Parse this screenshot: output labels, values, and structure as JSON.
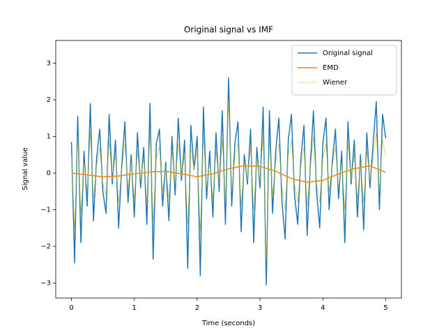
{
  "chart_data": {
    "type": "line",
    "title": "Original signal vs IMF",
    "xlabel": "Time (seconds)",
    "ylabel": "Signal value",
    "xlim": [
      -0.25,
      5.25
    ],
    "ylim": [
      -3.41,
      3.62
    ],
    "xticks": [
      0,
      1,
      2,
      3,
      4,
      5
    ],
    "yticks": [
      {
        "value": -3,
        "label": "−3"
      },
      {
        "value": -2,
        "label": "−2"
      },
      {
        "value": -1,
        "label": "−1"
      },
      0,
      1,
      2,
      3
    ],
    "legend": "upper right",
    "x": [
      0,
      0.05,
      0.1,
      0.15,
      0.2,
      0.25,
      0.3,
      0.35,
      0.4,
      0.45,
      0.5,
      0.55,
      0.6,
      0.65,
      0.7,
      0.75,
      0.8,
      0.85,
      0.9,
      0.95,
      1,
      1.05,
      1.1,
      1.15,
      1.2,
      1.25,
      1.3,
      1.35,
      1.4,
      1.45,
      1.5,
      1.55,
      1.6,
      1.65,
      1.7,
      1.75,
      1.8,
      1.85,
      1.9,
      1.95,
      2,
      2.05,
      2.1,
      2.15,
      2.2,
      2.25,
      2.3,
      2.35,
      2.4,
      2.45,
      2.5,
      2.55,
      2.6,
      2.65,
      2.7,
      2.75,
      2.8,
      2.85,
      2.9,
      2.95,
      3,
      3.05,
      3.1,
      3.15,
      3.2,
      3.25,
      3.3,
      3.35,
      3.4,
      3.45,
      3.5,
      3.55,
      3.6,
      3.65,
      3.7,
      3.75,
      3.8,
      3.85,
      3.9,
      3.95,
      4,
      4.05,
      4.1,
      4.15,
      4.2,
      4.25,
      4.3,
      4.35,
      4.4,
      4.45,
      4.5,
      4.55,
      4.6,
      4.65,
      4.7,
      4.75,
      4.8,
      4.85,
      4.9,
      4.95,
      5
    ],
    "series": [
      {
        "name": "Original signal",
        "color": "#1f77b4",
        "width": 1.5,
        "values": [
          0.85,
          -2.45,
          1.55,
          -1.9,
          0.6,
          -0.9,
          1.9,
          -1.3,
          0.4,
          1.2,
          -0.5,
          -1.1,
          1.6,
          -0.3,
          0.9,
          -1.5,
          0.2,
          1.4,
          -0.8,
          0.5,
          -1.2,
          1.1,
          -0.4,
          0.7,
          -1.4,
          1.9,
          -2.35,
          0.8,
          1.2,
          -0.9,
          0.3,
          -1.3,
          1.0,
          -0.6,
          1.5,
          -0.2,
          0.9,
          -2.6,
          1.3,
          0.1,
          1.0,
          -2.8,
          1.8,
          -0.7,
          0.6,
          -1.2,
          1.1,
          -0.5,
          1.7,
          -1.4,
          2.6,
          -0.9,
          0.8,
          1.4,
          -1.6,
          0.5,
          -0.3,
          1.2,
          -1.9,
          0.7,
          -0.4,
          1.8,
          -3.05,
          1.7,
          -1.1,
          0.6,
          1.5,
          -0.8,
          -1.8,
          0.9,
          1.6,
          -0.6,
          -1.4,
          0.4,
          1.3,
          -1.7,
          0.2,
          1.7,
          -0.5,
          -1.5,
          0.8,
          1.5,
          -1.0,
          0.3,
          1.2,
          -0.7,
          0.6,
          -1.9,
          1.4,
          -0.3,
          0.9,
          -1.2,
          0.5,
          -1.55,
          1.1,
          -0.4,
          0.8,
          1.95,
          -1.0,
          1.6,
          0.95
        ]
      },
      {
        "name": "EMD",
        "color": "#ff7f0e",
        "width": 1.5,
        "x": [
          0,
          0.25,
          0.5,
          0.75,
          1,
          1.25,
          1.5,
          1.75,
          2,
          2.25,
          2.5,
          2.75,
          3,
          3.25,
          3.5,
          3.75,
          4,
          4.25,
          4.5,
          4.75,
          5
        ],
        "values": [
          0.0,
          -0.05,
          -0.1,
          -0.08,
          -0.02,
          0.03,
          0.05,
          -0.02,
          -0.1,
          -0.02,
          0.12,
          0.2,
          0.18,
          0.05,
          -0.15,
          -0.25,
          -0.2,
          -0.02,
          0.12,
          0.2,
          0.02
        ]
      },
      {
        "name": "Wiener",
        "color": "#bcbd22",
        "width": 0.6,
        "values": [
          0.5,
          -1.5,
          1.0,
          -1.1,
          0.3,
          -0.5,
          1.1,
          -0.7,
          0.2,
          0.7,
          -0.3,
          -0.6,
          0.9,
          -0.2,
          0.5,
          -0.8,
          0.1,
          0.8,
          -0.4,
          0.3,
          -0.7,
          0.6,
          -0.2,
          0.4,
          -0.8,
          1.1,
          -1.3,
          0.4,
          0.7,
          -0.5,
          0.2,
          -0.7,
          0.6,
          -0.3,
          0.8,
          -0.1,
          0.5,
          -1.4,
          0.7,
          0.1,
          0.6,
          -1.6,
          1.0,
          -0.4,
          0.3,
          -0.7,
          0.6,
          -0.3,
          0.9,
          -0.8,
          2.0,
          -0.5,
          0.4,
          0.8,
          -0.9,
          0.3,
          -0.2,
          0.7,
          -1.0,
          0.4,
          -0.2,
          1.0,
          -2.4,
          0.9,
          -0.6,
          0.3,
          0.8,
          -0.4,
          -1.0,
          0.5,
          0.9,
          -0.3,
          -0.8,
          0.2,
          0.7,
          -0.9,
          0.1,
          1.0,
          -0.3,
          -0.8,
          0.4,
          0.8,
          -0.5,
          0.2,
          0.7,
          -0.4,
          0.3,
          -1.0,
          0.8,
          -0.2,
          0.5,
          -0.7,
          0.3,
          -0.8,
          0.6,
          -0.2,
          0.4,
          1.1,
          -0.5,
          0.9,
          0.5
        ]
      }
    ]
  }
}
